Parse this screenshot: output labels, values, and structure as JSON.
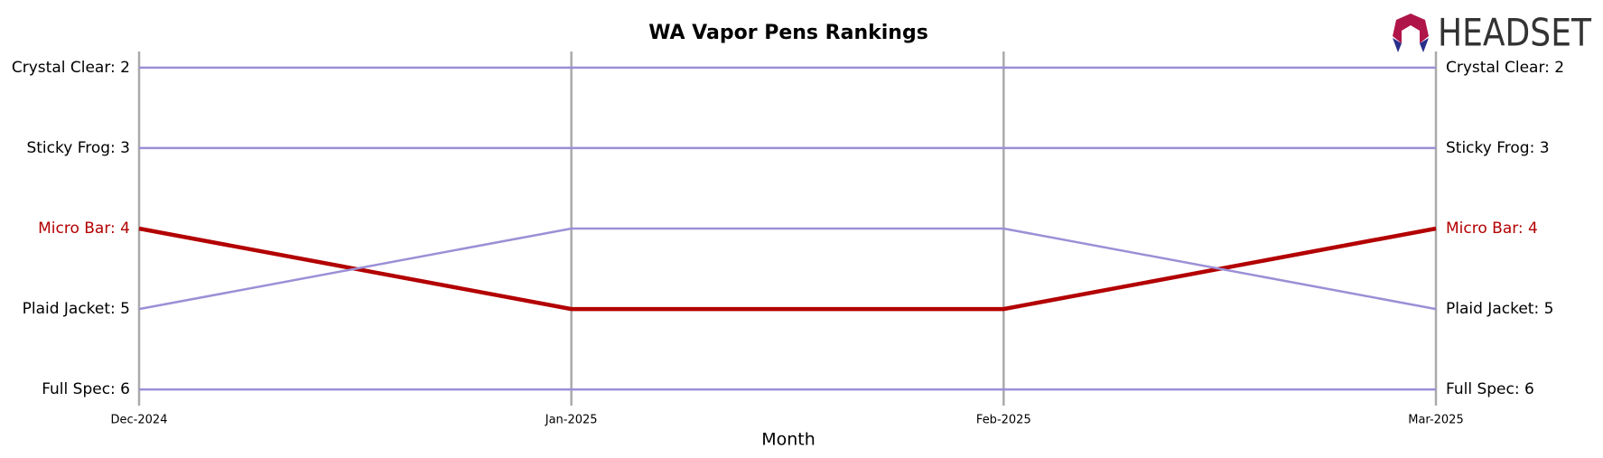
{
  "chart_data": {
    "type": "line",
    "title": "WA Vapor Pens Rankings",
    "xlabel": "Month",
    "logo": "HEADSET",
    "categories": [
      "Dec-2024",
      "Jan-2025",
      "Feb-2025",
      "Mar-2025"
    ],
    "ylim": [
      6.2,
      1.8
    ],
    "grid": true,
    "series": [
      {
        "name": "Crystal Clear",
        "color": "#9b8fd6",
        "values": [
          2,
          2,
          2,
          2
        ],
        "start_label": "Crystal Clear: 2",
        "end_label": "Crystal Clear: 2"
      },
      {
        "name": "Sticky Frog",
        "color": "#9b8fd6",
        "values": [
          3,
          3,
          3,
          3
        ],
        "start_label": "Sticky Frog: 3",
        "end_label": "Sticky Frog: 3"
      },
      {
        "name": "Micro Bar",
        "color": "#b30000",
        "values": [
          4,
          5,
          5,
          4
        ],
        "start_label": "Micro Bar: 4",
        "end_label": "Micro Bar: 4"
      },
      {
        "name": "Plaid Jacket",
        "color": "#9b8fd6",
        "values": [
          5,
          4,
          4,
          5
        ],
        "start_label": "Plaid Jacket: 5",
        "end_label": "Plaid Jacket: 5"
      },
      {
        "name": "Full Spec",
        "color": "#9b8fd6",
        "values": [
          6,
          6,
          6,
          6
        ],
        "start_label": "Full Spec: 6",
        "end_label": "Full Spec: 6"
      }
    ]
  }
}
